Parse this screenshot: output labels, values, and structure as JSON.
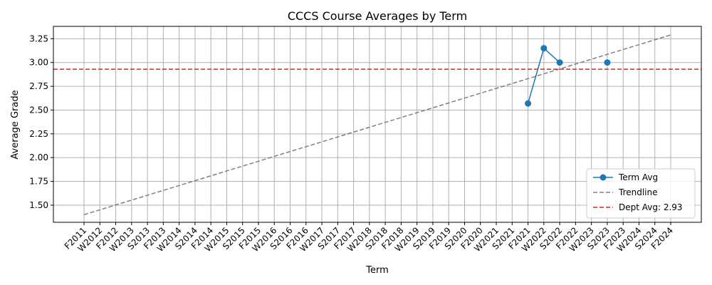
{
  "chart_data": {
    "type": "line",
    "title": "CCCS Course Averages by Term",
    "xlabel": "Term",
    "ylabel": "Average Grade",
    "categories": [
      "F2011",
      "W2012",
      "F2012",
      "W2013",
      "S2013",
      "F2013",
      "W2014",
      "S2014",
      "F2014",
      "W2015",
      "S2015",
      "F2015",
      "W2016",
      "S2016",
      "F2016",
      "W2017",
      "S2017",
      "F2017",
      "W2018",
      "S2018",
      "F2018",
      "W2019",
      "S2019",
      "F2019",
      "S2020",
      "F2020",
      "W2021",
      "S2021",
      "F2021",
      "W2022",
      "S2022",
      "F2022",
      "W2023",
      "S2023",
      "F2023",
      "W2024",
      "S2024",
      "F2024"
    ],
    "yticks": [
      "1.50",
      "1.75",
      "2.00",
      "2.25",
      "2.50",
      "2.75",
      "3.00",
      "3.25"
    ],
    "ylim": [
      1.32,
      3.38
    ],
    "grid": true,
    "legend_position": "lower-right",
    "series": [
      {
        "name": "Term Avg",
        "color": "#1f77b4",
        "style": "solid-marker",
        "points": [
          [
            "F2021",
            2.57
          ],
          [
            "W2022",
            3.15
          ],
          [
            "S2022",
            3.0
          ],
          [
            "S2023",
            3.0
          ]
        ]
      },
      {
        "name": "Trendline",
        "color": "#808080",
        "style": "dashed",
        "points": [
          [
            "F2011",
            1.4
          ],
          [
            "F2024",
            3.29
          ]
        ]
      },
      {
        "name": "Dept Avg: 2.93",
        "color": "#d62728",
        "style": "dashed-horizontal",
        "value": 2.93
      }
    ]
  }
}
